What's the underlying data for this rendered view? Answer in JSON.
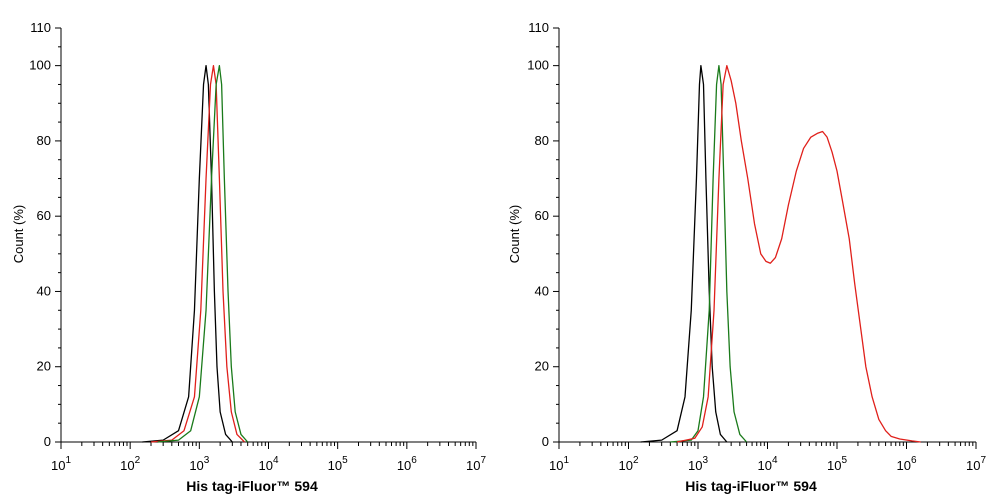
{
  "chart_data": [
    {
      "type": "line",
      "title": "",
      "xlabel": "His tag-iFluor™ 594",
      "ylabel": "Count  (%)",
      "xscale": "log",
      "xlim": [
        10,
        10000000
      ],
      "ylim": [
        0,
        110
      ],
      "x_ticks": [
        1,
        2,
        3,
        4,
        5,
        6,
        7
      ],
      "x_tick_base": "10",
      "y_ticks": [
        "0",
        "20",
        "40",
        "60",
        "80",
        "100",
        "110"
      ],
      "y_tick_values": [
        0,
        20,
        40,
        60,
        80,
        100,
        110
      ],
      "grid": false,
      "series": [
        {
          "color": "#000000",
          "points": [
            [
              150,
              0
            ],
            [
              300,
              0.5
            ],
            [
              500,
              3
            ],
            [
              700,
              12
            ],
            [
              850,
              35
            ],
            [
              1000,
              70
            ],
            [
              1150,
              95
            ],
            [
              1250,
              100
            ],
            [
              1350,
              95
            ],
            [
              1500,
              70
            ],
            [
              1650,
              40
            ],
            [
              1800,
              20
            ],
            [
              2000,
              8
            ],
            [
              2400,
              2
            ],
            [
              3000,
              0
            ]
          ]
        },
        {
          "color": "#e0201b",
          "points": [
            [
              200,
              0
            ],
            [
              400,
              0.5
            ],
            [
              600,
              3
            ],
            [
              850,
              12
            ],
            [
              1050,
              35
            ],
            [
              1250,
              70
            ],
            [
              1450,
              95
            ],
            [
              1600,
              100
            ],
            [
              1750,
              95
            ],
            [
              1950,
              70
            ],
            [
              2200,
              40
            ],
            [
              2500,
              20
            ],
            [
              2900,
              8
            ],
            [
              3500,
              2
            ],
            [
              4500,
              0
            ]
          ]
        },
        {
          "color": "#1a7a1a",
          "points": [
            [
              250,
              0
            ],
            [
              500,
              0.5
            ],
            [
              750,
              3
            ],
            [
              1000,
              12
            ],
            [
              1250,
              35
            ],
            [
              1500,
              70
            ],
            [
              1750,
              95
            ],
            [
              1950,
              100
            ],
            [
              2100,
              95
            ],
            [
              2300,
              70
            ],
            [
              2600,
              40
            ],
            [
              2900,
              20
            ],
            [
              3300,
              8
            ],
            [
              4000,
              2
            ],
            [
              5000,
              0
            ]
          ]
        }
      ]
    },
    {
      "type": "line",
      "title": "",
      "xlabel": "His tag-iFluor™ 594",
      "ylabel": "Count  (%)",
      "xscale": "log",
      "xlim": [
        10,
        10000000
      ],
      "ylim": [
        0,
        110
      ],
      "x_ticks": [
        1,
        2,
        3,
        4,
        5,
        6,
        7
      ],
      "x_tick_base": "10",
      "y_ticks": [
        "0",
        "20",
        "40",
        "60",
        "80",
        "100",
        "110"
      ],
      "y_tick_values": [
        0,
        20,
        40,
        60,
        80,
        100,
        110
      ],
      "grid": false,
      "series": [
        {
          "color": "#000000",
          "points": [
            [
              150,
              0
            ],
            [
              300,
              0.5
            ],
            [
              500,
              3
            ],
            [
              650,
              12
            ],
            [
              800,
              35
            ],
            [
              950,
              70
            ],
            [
              1050,
              95
            ],
            [
              1100,
              100
            ],
            [
              1200,
              95
            ],
            [
              1300,
              70
            ],
            [
              1450,
              40
            ],
            [
              1600,
              20
            ],
            [
              1800,
              8
            ],
            [
              2100,
              2
            ],
            [
              2600,
              0
            ]
          ]
        },
        {
          "color": "#1a7a1a",
          "points": [
            [
              400,
              0
            ],
            [
              800,
              0.5
            ],
            [
              1000,
              3
            ],
            [
              1200,
              12
            ],
            [
              1450,
              35
            ],
            [
              1650,
              70
            ],
            [
              1850,
              95
            ],
            [
              2000,
              100
            ],
            [
              2150,
              95
            ],
            [
              2350,
              70
            ],
            [
              2600,
              40
            ],
            [
              2900,
              20
            ],
            [
              3300,
              8
            ],
            [
              4000,
              2
            ],
            [
              5000,
              0
            ]
          ]
        },
        {
          "color": "#e0201b",
          "points": [
            [
              500,
              0
            ],
            [
              900,
              1
            ],
            [
              1150,
              4
            ],
            [
              1400,
              12
            ],
            [
              1700,
              35
            ],
            [
              2000,
              70
            ],
            [
              2300,
              95
            ],
            [
              2600,
              100
            ],
            [
              3000,
              96
            ],
            [
              3500,
              90
            ],
            [
              4200,
              80
            ],
            [
              5200,
              70
            ],
            [
              6500,
              58
            ],
            [
              8000,
              50
            ],
            [
              9500,
              48
            ],
            [
              11000,
              47.5
            ],
            [
              13000,
              49
            ],
            [
              16000,
              54
            ],
            [
              20000,
              63
            ],
            [
              26000,
              72
            ],
            [
              33000,
              78
            ],
            [
              42000,
              81
            ],
            [
              52000,
              82
            ],
            [
              62000,
              82.5
            ],
            [
              72000,
              81
            ],
            [
              85000,
              77
            ],
            [
              100000,
              72
            ],
            [
              120000,
              64
            ],
            [
              150000,
              54
            ],
            [
              180000,
              42
            ],
            [
              220000,
              30
            ],
            [
              260000,
              20
            ],
            [
              320000,
              12
            ],
            [
              400000,
              6
            ],
            [
              500000,
              3
            ],
            [
              600000,
              1.5
            ],
            [
              800000,
              0.8
            ],
            [
              1200000,
              0.3
            ],
            [
              1600000,
              0
            ]
          ]
        }
      ]
    }
  ]
}
